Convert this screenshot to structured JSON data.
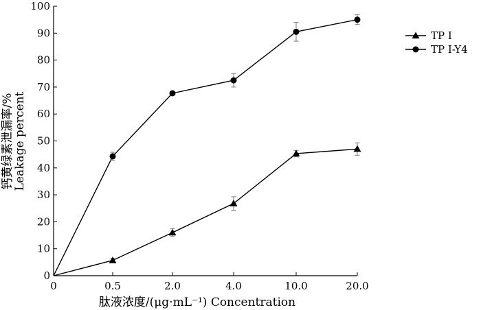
{
  "chart_data": {
    "type": "line",
    "categories": [
      "0",
      "0.5",
      "2.0",
      "4.0",
      "10.0",
      "20.0"
    ],
    "ylim": [
      0,
      100
    ],
    "yticks": [
      0,
      10,
      20,
      30,
      40,
      50,
      60,
      70,
      80,
      90,
      100
    ],
    "xlabel": "肽液浓度/(μg·mL⁻¹) Concentration",
    "ylabel_cn": "钙黄绿素泄漏率/%",
    "ylabel_en": "Leakage percent",
    "legend_position": "top-right",
    "grid": false,
    "series": [
      {
        "name": "TP I",
        "marker": "triangle",
        "values": [
          0,
          5.7,
          16.0,
          26.8,
          45.3,
          47.0
        ],
        "errors": [
          0,
          0.8,
          1.5,
          2.5,
          1.2,
          2.3
        ]
      },
      {
        "name": "TP I-Y4",
        "marker": "circle",
        "values": [
          0,
          44.3,
          67.7,
          72.5,
          90.5,
          95.0
        ],
        "errors": [
          0,
          1.5,
          0.6,
          2.5,
          3.5,
          1.8
        ]
      }
    ]
  }
}
